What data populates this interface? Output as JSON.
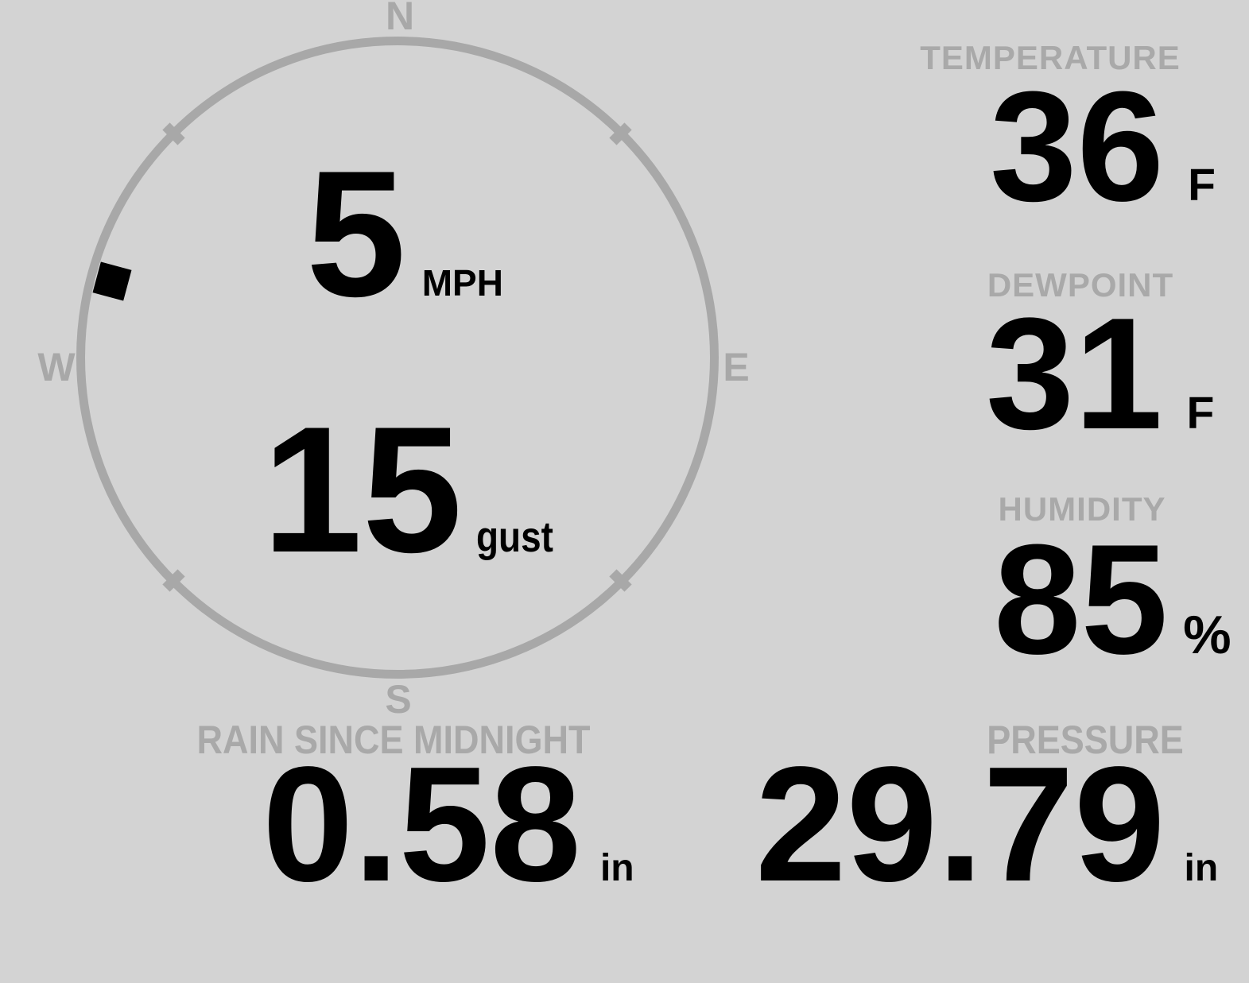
{
  "colors": {
    "background": "#d3d3d3",
    "muted_gray": "#a8a8a8",
    "value_black": "#000000"
  },
  "wind": {
    "compass": {
      "north": "N",
      "east": "E",
      "south": "S",
      "west": "W"
    },
    "speed": {
      "value": "5",
      "unit": "MPH"
    },
    "gust": {
      "value": "15",
      "unit": "gust"
    },
    "direction_degrees": 285
  },
  "readings": {
    "temperature": {
      "label": "TEMPERATURE",
      "value": "36",
      "unit": "F"
    },
    "dewpoint": {
      "label": "DEWPOINT",
      "value": "31",
      "unit": "F"
    },
    "humidity": {
      "label": "HUMIDITY",
      "value": "85",
      "unit": "%"
    },
    "rain": {
      "label": "RAIN SINCE MIDNIGHT",
      "value": "0.58",
      "unit": "in"
    },
    "pressure": {
      "label": "PRESSURE",
      "value": "29.79",
      "unit": "in"
    }
  }
}
